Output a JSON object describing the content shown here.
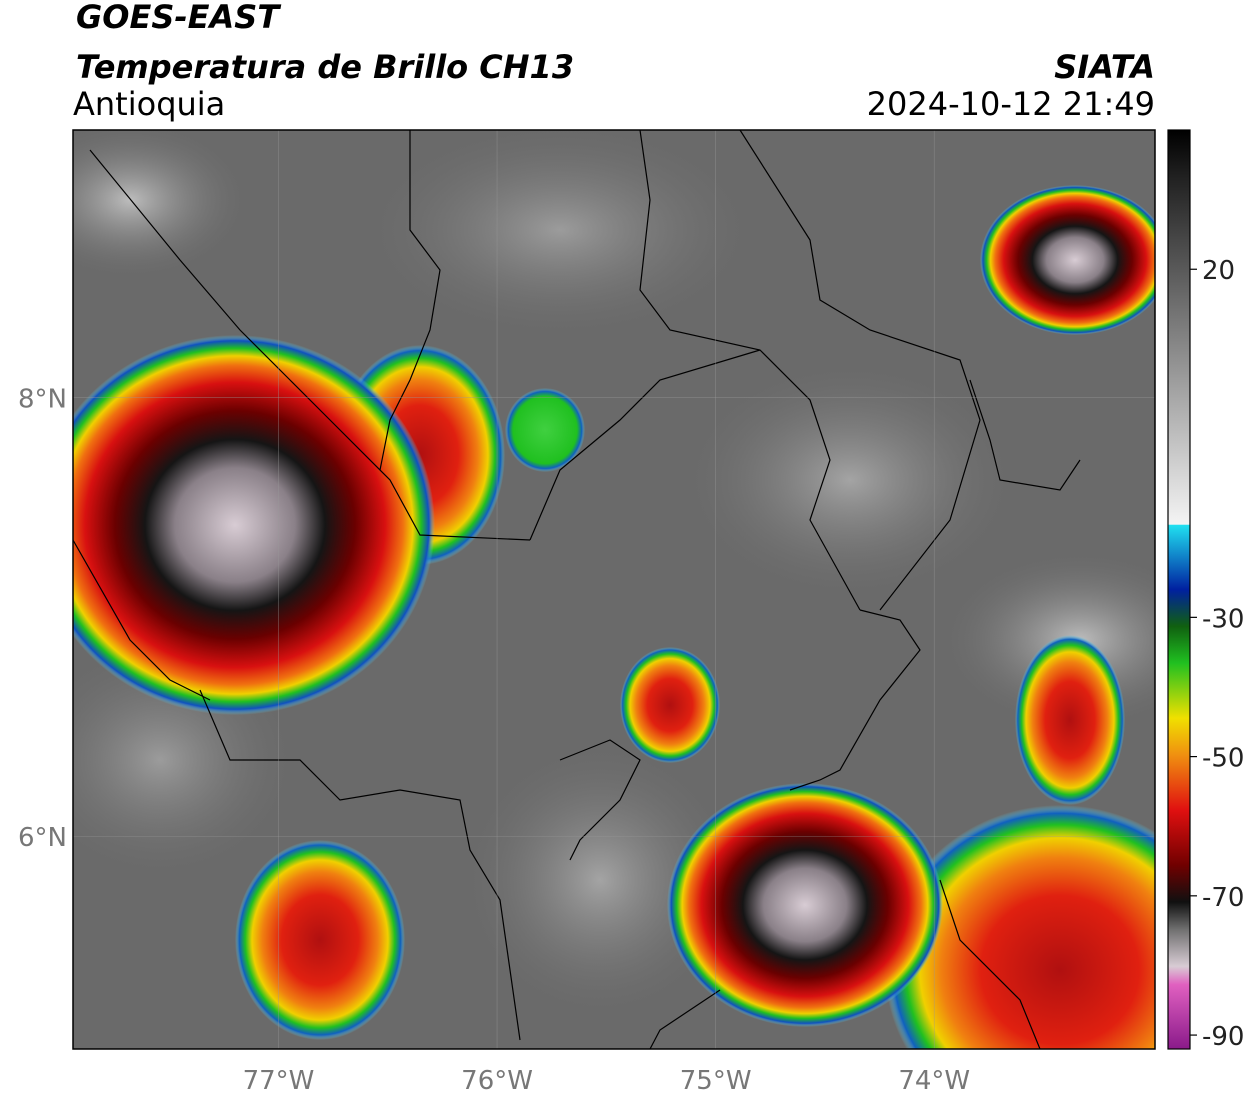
{
  "header": {
    "title": "GOES-EAST",
    "subtitle": "Temperatura de Brillo CH13",
    "region": "Antioquia",
    "source": "SIATA",
    "datetime": "2024-10-12 21:49"
  },
  "map": {
    "xlim": [
      -77.94,
      -72.99
    ],
    "ylim": [
      5.03,
      9.22
    ],
    "xticks": [
      {
        "value": -77,
        "label": "77°W"
      },
      {
        "value": -76,
        "label": "76°W"
      },
      {
        "value": -75,
        "label": "75°W"
      },
      {
        "value": -74,
        "label": "74°W"
      }
    ],
    "yticks": [
      {
        "value": 6,
        "label": "6°N"
      },
      {
        "value": 8,
        "label": "8°N"
      }
    ],
    "grid": true
  },
  "colorbar": {
    "lim": [
      -92,
      40
    ],
    "ticks": [
      20,
      -30,
      -50,
      -70,
      -90
    ]
  }
}
